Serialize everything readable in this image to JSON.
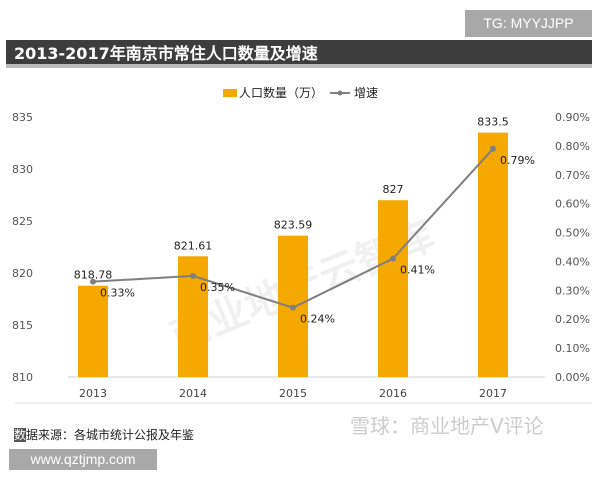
{
  "tag": "TG: MYYJJPP",
  "footer": {
    "source_prefix": "数",
    "source": "据来源：各城市统计公报及年鉴",
    "website": "www.qztjmp.com"
  },
  "watermarks": [
    "商业地产云智库",
    "雪球：商业地产V评论"
  ],
  "chart_data": {
    "type": "bar",
    "title": "2013-2017年南京市常住人口数量及增速",
    "categories": [
      "2013",
      "2014",
      "2015",
      "2016",
      "2017"
    ],
    "series": [
      {
        "name": "人口数量（万）",
        "type": "bar",
        "axis": "left",
        "color": "#f5a800",
        "values": [
          818.78,
          821.61,
          823.59,
          827,
          833.5
        ],
        "labels": [
          "818.78",
          "821.61",
          "823.59",
          "827",
          "833.5"
        ]
      },
      {
        "name": "增速",
        "type": "line",
        "axis": "right",
        "color": "#7f7f7f",
        "values": [
          0.33,
          0.35,
          0.24,
          0.41,
          0.79
        ],
        "labels": [
          "0.33%",
          "0.35%",
          "0.24%",
          "0.41%",
          "0.79%"
        ]
      }
    ],
    "ylim": [
      810,
      835
    ],
    "yticks": [
      "810",
      "815",
      "820",
      "825",
      "830",
      "835"
    ],
    "y2lim": [
      0,
      0.9
    ],
    "y2ticks": [
      "0.00%",
      "0.10%",
      "0.20%",
      "0.30%",
      "0.40%",
      "0.50%",
      "0.60%",
      "0.70%",
      "0.80%",
      "0.90%"
    ],
    "legend": "top-center",
    "grid": false
  }
}
